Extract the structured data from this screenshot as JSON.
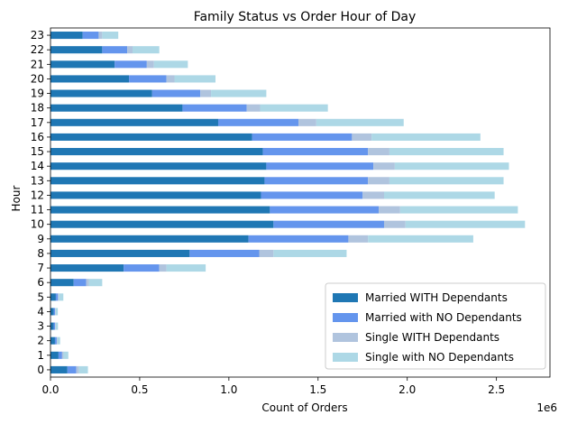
{
  "chart_data": {
    "type": "bar",
    "orientation": "horizontal",
    "stacked": true,
    "title": "Family Status vs Order Hour of Day",
    "xlabel": "Count of Orders",
    "ylabel": "Hour",
    "x_scale_label": "1e6",
    "xlim": [
      0,
      2.8
    ],
    "xticks": [
      0.0,
      0.5,
      1.0,
      1.5,
      2.0,
      2.5
    ],
    "xtick_labels": [
      "0.0",
      "0.5",
      "1.0",
      "1.5",
      "2.0",
      "2.5"
    ],
    "categories": [
      "0",
      "1",
      "2",
      "3",
      "4",
      "5",
      "6",
      "7",
      "8",
      "9",
      "10",
      "11",
      "12",
      "13",
      "14",
      "15",
      "16",
      "17",
      "18",
      "19",
      "20",
      "21",
      "22",
      "23"
    ],
    "legend_position": "lower-right",
    "series": [
      {
        "name": "Married WITH Dependants",
        "color": "#1f77b4",
        "values": [
          0.095,
          0.045,
          0.025,
          0.018,
          0.018,
          0.03,
          0.13,
          0.41,
          0.78,
          1.11,
          1.25,
          1.23,
          1.18,
          1.2,
          1.21,
          1.19,
          1.13,
          0.94,
          0.74,
          0.57,
          0.44,
          0.36,
          0.29,
          0.18
        ]
      },
      {
        "name": "Married with NO Dependants",
        "color": "#6495ed",
        "values": [
          0.05,
          0.02,
          0.01,
          0.008,
          0.008,
          0.012,
          0.07,
          0.2,
          0.39,
          0.56,
          0.62,
          0.61,
          0.57,
          0.58,
          0.6,
          0.59,
          0.56,
          0.45,
          0.36,
          0.27,
          0.21,
          0.18,
          0.14,
          0.09
        ]
      },
      {
        "name": "Single WITH Dependants",
        "color": "#b0c4de",
        "values": [
          0.015,
          0.008,
          0.004,
          0.003,
          0.003,
          0.005,
          0.015,
          0.04,
          0.08,
          0.11,
          0.12,
          0.12,
          0.12,
          0.12,
          0.12,
          0.12,
          0.11,
          0.1,
          0.075,
          0.06,
          0.045,
          0.04,
          0.03,
          0.02
        ]
      },
      {
        "name": "Single with NO Dependants",
        "color": "#add8e6",
        "values": [
          0.05,
          0.027,
          0.015,
          0.013,
          0.012,
          0.025,
          0.075,
          0.22,
          0.41,
          0.59,
          0.67,
          0.66,
          0.62,
          0.64,
          0.64,
          0.64,
          0.61,
          0.49,
          0.38,
          0.31,
          0.23,
          0.19,
          0.15,
          0.09
        ]
      }
    ]
  }
}
